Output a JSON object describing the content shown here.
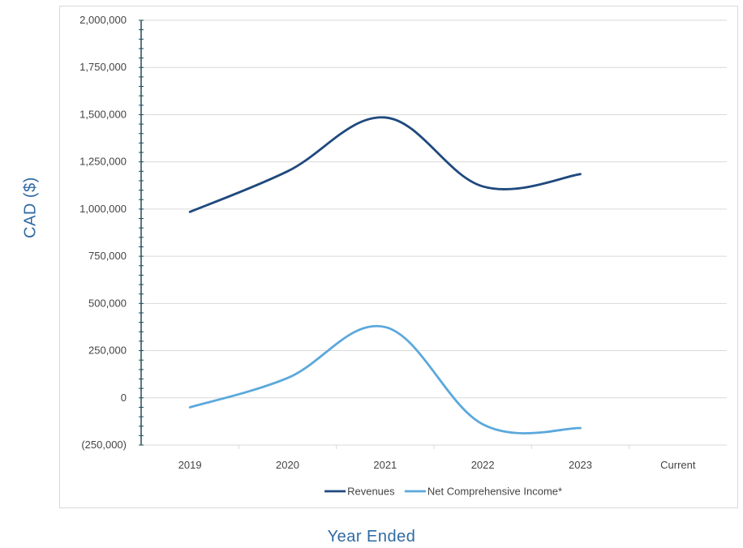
{
  "chart_data": {
    "type": "line",
    "title": "",
    "xlabel": "Year Ended",
    "ylabel": "CAD ($)",
    "categories": [
      "2019",
      "2020",
      "2021",
      "2022",
      "2023",
      "Current"
    ],
    "ylim": [
      -250000,
      2000000
    ],
    "yticks": [
      -250000,
      0,
      250000,
      500000,
      750000,
      1000000,
      1250000,
      1500000,
      1750000,
      2000000
    ],
    "ytick_labels": [
      "(250,000)",
      "0",
      "250,000",
      "500,000",
      "750,000",
      "1,000,000",
      "1,250,000",
      "1,500,000",
      "1,750,000",
      "2,000,000"
    ],
    "grid": true,
    "legend": "bottom",
    "series": [
      {
        "name": "Revenues",
        "color": "#1f497d",
        "values": [
          985000,
          1200000,
          1485000,
          1120000,
          1185000,
          null
        ]
      },
      {
        "name": "Net Comprehensive Income*",
        "color": "#5ba8dc",
        "values": [
          -50000,
          105000,
          375000,
          -140000,
          -160000,
          null
        ]
      }
    ]
  }
}
